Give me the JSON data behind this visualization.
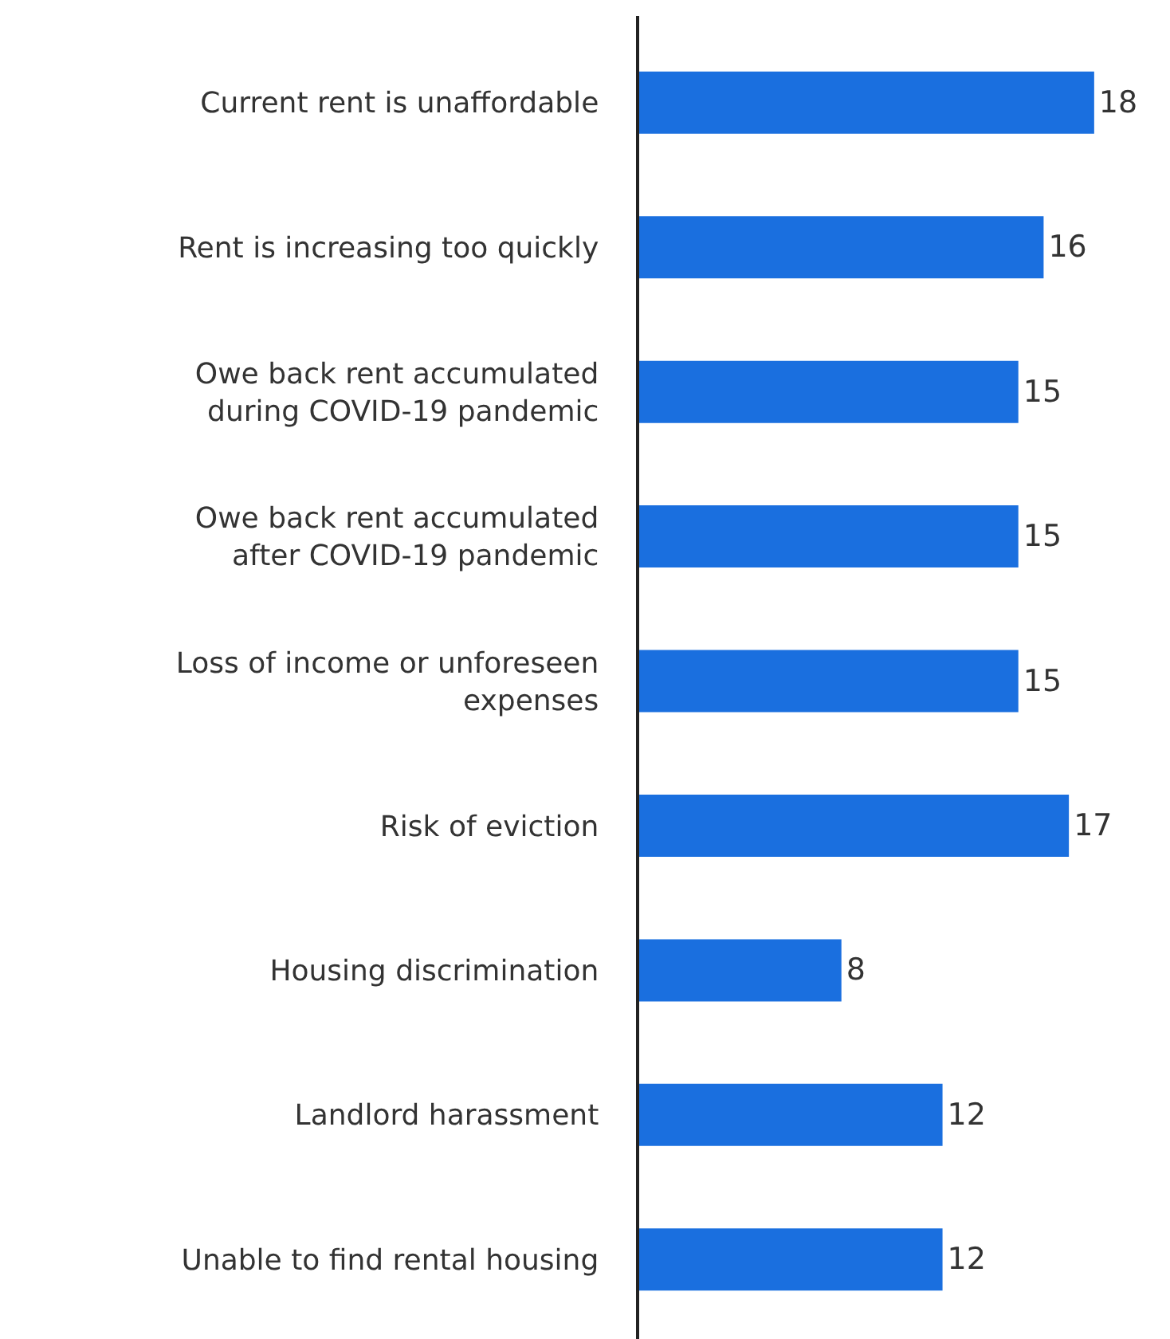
{
  "chart_data": {
    "type": "bar",
    "orientation": "horizontal",
    "categories": [
      "Current rent is unaffordable",
      "Rent is increasing too quickly",
      "Owe back rent accumulated\nduring COVID-19 pandemic",
      "Owe back rent accumulated\nafter COVID-19 pandemic",
      "Loss of income or unforeseen\nexpenses",
      "Risk of eviction",
      "Housing discrimination",
      "Landlord harassment",
      "Unable to find rental housing"
    ],
    "values": [
      18,
      16,
      15,
      15,
      15,
      17,
      8,
      12,
      12
    ],
    "color": "#1a6fdf",
    "xlim": [
      0,
      21
    ],
    "data_labels": true,
    "tick_labels": "y"
  }
}
